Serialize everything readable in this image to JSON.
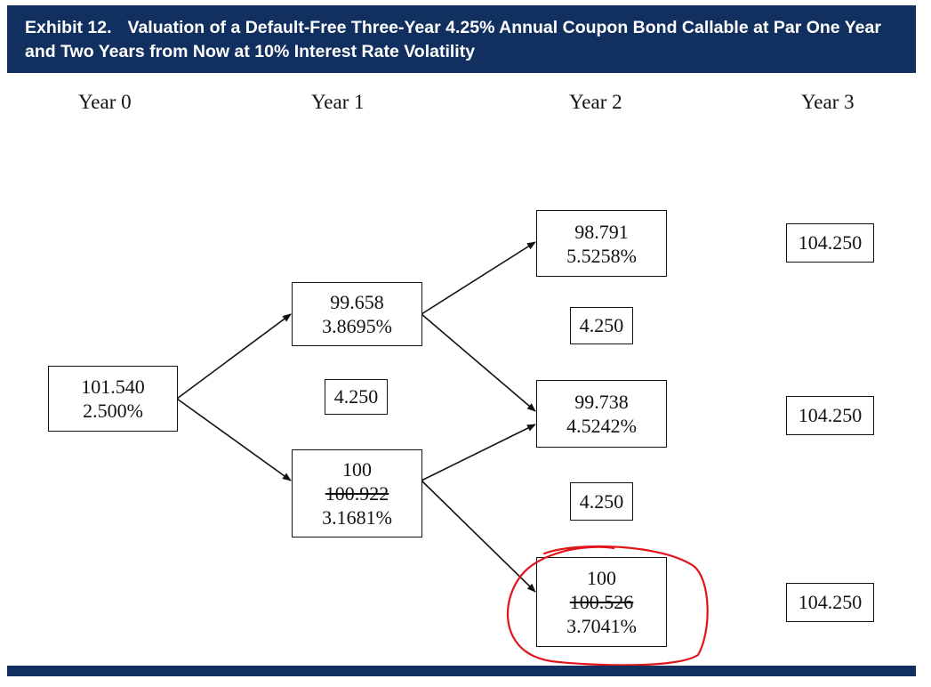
{
  "header": {
    "exhibit_label": "Exhibit 12.",
    "title": "Valuation of a Default-Free Three-Year 4.25% Annual Coupon Bond Callable at Par One Year and Two Years from Now at 10% Interest Rate Volatility"
  },
  "years": [
    "Year 0",
    "Year 1",
    "Year 2",
    "Year 3"
  ],
  "nodes": {
    "y0": {
      "value": "101.540",
      "rate": "2.500%"
    },
    "y1_up": {
      "value": "99.658",
      "rate": "3.8695%"
    },
    "y1_down": {
      "value": "100",
      "struck_value": "100.922",
      "rate": "3.1681%"
    },
    "y2_up": {
      "value": "98.791",
      "rate": "5.5258%"
    },
    "y2_mid": {
      "value": "99.738",
      "rate": "4.5242%"
    },
    "y2_down": {
      "value": "100",
      "struck_value": "100.526",
      "rate": "3.7041%"
    }
  },
  "coupons": {
    "y1": "4.250",
    "y2_upper": "4.250",
    "y2_lower": "4.250"
  },
  "year3_values": {
    "top": "104.250",
    "middle": "104.250",
    "bottom": "104.250"
  },
  "colors": {
    "header_bg": "#11305f",
    "header_text": "#ffffff",
    "annotation_circle": "#e0141a",
    "text": "#111111"
  }
}
